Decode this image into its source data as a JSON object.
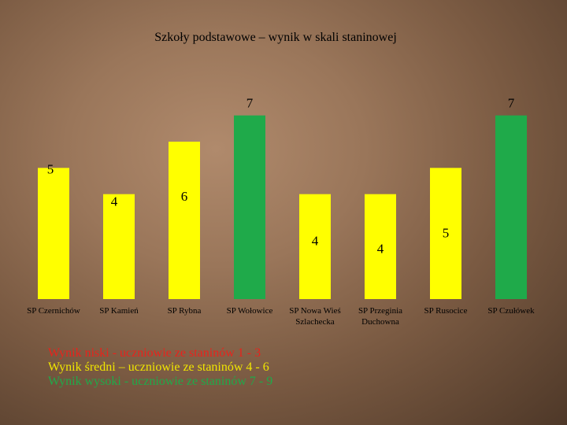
{
  "chart_data": {
    "type": "bar",
    "title": "Szkoły podstawowe – wynik w skali staninowej",
    "xlabel": "",
    "ylabel": "",
    "ylim": [
      0,
      7.8
    ],
    "grid": false,
    "categories": [
      [
        "SP Czernichów"
      ],
      [
        "SP Kamień"
      ],
      [
        "SP Rybna"
      ],
      [
        "SP Wołowice"
      ],
      [
        "SP Nowa Wieś",
        "Szlachecka"
      ],
      [
        "SP Przeginia",
        "Duchowna"
      ],
      [
        "SP Rusocice"
      ],
      [
        "SP Czułówek"
      ]
    ],
    "values": [
      5,
      4,
      6,
      7,
      4,
      4,
      5,
      7
    ],
    "bar_colors": [
      "#ffff00",
      "#ffff00",
      "#ffff00",
      "#1faa4a",
      "#ffff00",
      "#ffff00",
      "#ffff00",
      "#1faa4a"
    ]
  },
  "legend": [
    {
      "text": "Wynik niski - uczniowie ze staninów 1 - 3",
      "color": "#e8231c"
    },
    {
      "text": "Wynik średni – uczniowie ze staninów 4 - 6",
      "color": "#f0e600"
    },
    {
      "text": "Wynik wysoki - uczniowie ze staninów 7 - 9",
      "color": "#1faa4a"
    }
  ]
}
